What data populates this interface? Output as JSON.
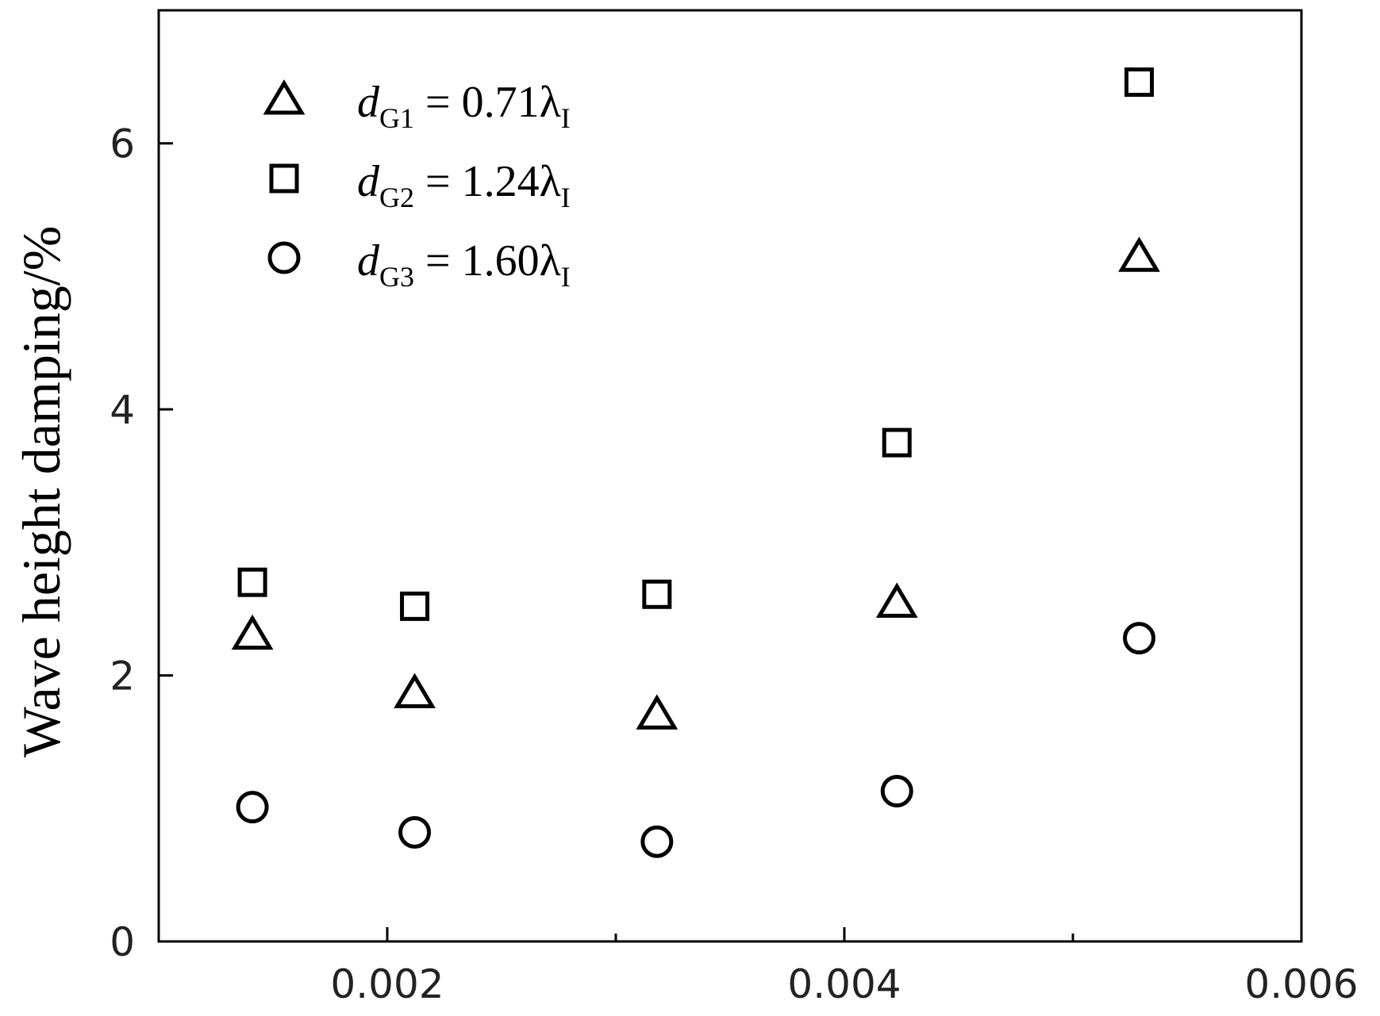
{
  "chart_data": {
    "type": "scatter",
    "y_label": "Wave height damping/%",
    "xlim": [
      0.001,
      0.006
    ],
    "xticks": [
      0.002,
      0.004,
      0.006
    ],
    "xminorticks": [
      0.003,
      0.005
    ],
    "ylim": [
      0,
      7
    ],
    "yticks": [
      0,
      2,
      4,
      6
    ],
    "series": [
      {
        "name": "dG1 = 0.71λI",
        "marker": "triangle",
        "color": "#000000",
        "x": [
          0.00141,
          0.00212,
          0.00318,
          0.00423,
          0.00529
        ],
        "values": [
          2.31,
          1.87,
          1.71,
          2.55,
          5.15
        ]
      },
      {
        "name": "dG2 = 1.24λI",
        "marker": "square",
        "color": "#000000",
        "x": [
          0.00141,
          0.00212,
          0.00318,
          0.00423,
          0.00529
        ],
        "values": [
          2.7,
          2.52,
          2.61,
          3.75,
          6.46
        ]
      },
      {
        "name": "dG3 = 1.60λI",
        "marker": "circle",
        "color": "#000000",
        "x": [
          0.00141,
          0.00212,
          0.00318,
          0.00423,
          0.00529
        ],
        "values": [
          1.01,
          0.82,
          0.75,
          1.13,
          2.28
        ]
      }
    ]
  }
}
